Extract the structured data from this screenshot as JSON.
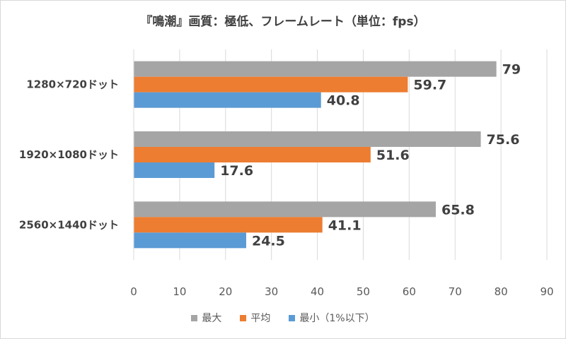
{
  "chart_data": {
    "type": "bar",
    "orientation": "horizontal",
    "title": "『鳴潮』画質：極低、フレームレート（単位：fps）",
    "categories": [
      "1280×720ドット",
      "1920×1080ドット",
      "2560×1440ドット"
    ],
    "series": [
      {
        "name": "最大",
        "color": "#a5a5a5",
        "values": [
          79,
          75.6,
          65.8
        ]
      },
      {
        "name": "平均",
        "color": "#ed7d31",
        "values": [
          59.7,
          51.6,
          41.1
        ]
      },
      {
        "name": "最小（1%以下）",
        "color": "#5b9bd5",
        "values": [
          40.8,
          17.6,
          24.5
        ]
      }
    ],
    "xlim": [
      0,
      90
    ],
    "xticks": [
      0,
      10,
      20,
      30,
      40,
      50,
      60,
      70,
      80,
      90
    ],
    "grid": "vertical",
    "legend": "bottom"
  }
}
